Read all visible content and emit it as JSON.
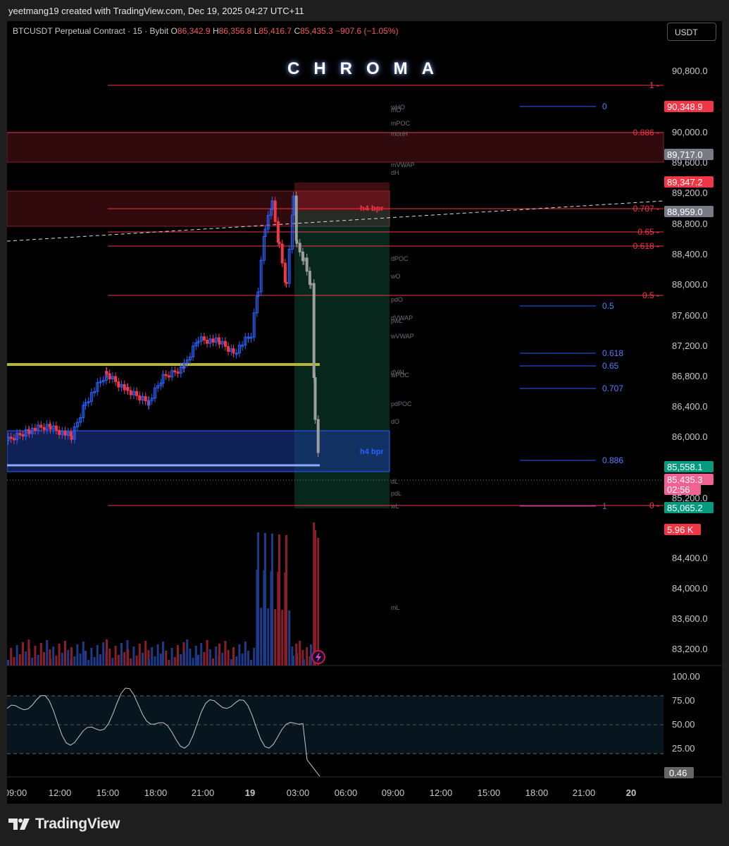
{
  "header": {
    "created_by": "yeetmang19 created with TradingView.com, Dec 19, 2025 04:27 UTC+11"
  },
  "symbol": {
    "title": "BTCUSDT Perpetual Contract · 15 · Bybit",
    "open_label": "O",
    "open": "86,342.9",
    "high_label": "H",
    "high": "86,356.8",
    "low_label": "L",
    "low": "85,416.7",
    "close_label": "C",
    "close": "85,435.3",
    "change": "−907.6 (−1.05%)"
  },
  "currency_button": "USDT",
  "indicator_brand": "CHROMA",
  "colors": {
    "red": "#f23645",
    "blue": "#2962ff",
    "teal": "#089981",
    "yellow": "#b5b531",
    "pink": "#f06292"
  },
  "price_axis": {
    "ticks": [
      "90,800.0",
      "90,000.0",
      "89,600.0",
      "89,200.0",
      "88,800.0",
      "88,400.0",
      "88,000.0",
      "87,600.0",
      "87,200.0",
      "86,800.0",
      "86,400.0",
      "86,000.0",
      "85,200.0",
      "84,400.0",
      "84,000.0",
      "83,600.0",
      "83,200.0"
    ],
    "badges": [
      {
        "text": "90,348.9",
        "color": "#f23645"
      },
      {
        "text": "89,717.0",
        "color": "#787b86"
      },
      {
        "text": "89,347.2",
        "color": "#f23645"
      },
      {
        "text": "88,959.0",
        "color": "#787b86"
      },
      {
        "text": "85,558.1",
        "color": "#089981"
      },
      {
        "text": "85,435.3",
        "color": "#f06292"
      },
      {
        "text": "02:56",
        "color": "#f06292"
      },
      {
        "text": "85,065.2",
        "color": "#089981"
      },
      {
        "text": "5.96 K",
        "color": "#f23645"
      }
    ]
  },
  "fib_red": [
    "1",
    "0.886",
    "0.707",
    "0.65",
    "0.618",
    "0.5",
    "0"
  ],
  "fib_blue": [
    "0",
    "0.5",
    "0.618",
    "0.65",
    "0.707",
    "0.886",
    "1"
  ],
  "level_labels": [
    "wHO",
    "mO",
    "mPOC",
    "monH",
    "mVWAP",
    "dH",
    "dPOC",
    "wO",
    "pdO",
    "dVWAP",
    "pwL",
    "wVWAP",
    "dVAL",
    "wPOC",
    "pdPOC",
    "dO",
    "dL",
    "pdL",
    "wL",
    "mL"
  ],
  "zones": {
    "h4bpr_red": "h4 bpr",
    "h4bpr_blue": "h4 bpr"
  },
  "rsi": {
    "ticks": [
      "100.00",
      "75.00",
      "50.00",
      "25.00"
    ],
    "value": "0.46"
  },
  "time_axis": [
    "09:00",
    "12:00",
    "15:00",
    "18:00",
    "21:00",
    "19",
    "03:00",
    "06:00",
    "09:00",
    "12:00",
    "15:00",
    "18:00",
    "21:00",
    "20"
  ],
  "footer": {
    "brand": "TradingView"
  }
}
